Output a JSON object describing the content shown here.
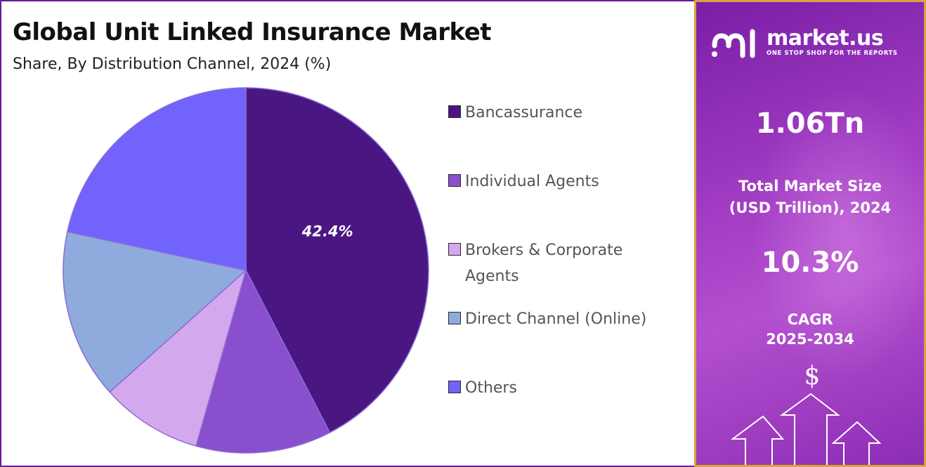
{
  "header": {
    "title": "Global Unit Linked Insurance Market",
    "subtitle": "Share, By Distribution Channel, 2024 (%)"
  },
  "chart_data": {
    "type": "pie",
    "title": "Global Unit Linked Insurance Market",
    "subtitle": "Share, By Distribution Channel, 2024 (%)",
    "slices": [
      {
        "label": "Bancassurance",
        "value": 42.4,
        "color": "#4a1782",
        "show_label": "42.4%"
      },
      {
        "label": "Individual Agents",
        "value": 12.0,
        "color": "#8a4fcc",
        "show_label": ""
      },
      {
        "label": "Brokers & Corporate Agents",
        "value": 9.0,
        "color": "#d4a8ec",
        "show_label": ""
      },
      {
        "label": "Direct Channel (Online)",
        "value": 15.0,
        "color": "#8faadc",
        "show_label": ""
      },
      {
        "label": "Others",
        "value": 21.6,
        "color": "#7163fc",
        "show_label": ""
      }
    ],
    "legend_position": "right"
  },
  "legend": [
    {
      "label": "Bancassurance",
      "color": "#4a1782"
    },
    {
      "label": "Individual Agents",
      "color": "#8a4fcc"
    },
    {
      "label": "Brokers & Corporate Agents",
      "color": "#d4a8ec"
    },
    {
      "label": "Direct Channel (Online)",
      "color": "#8faadc"
    },
    {
      "label": "Others",
      "color": "#7163fc"
    }
  ],
  "sidebar": {
    "brand": "market.us",
    "tagline": "ONE STOP SHOP FOR THE REPORTS",
    "market_size": "1.06Tn",
    "market_size_label_line1": "Total Market Size",
    "market_size_label_line2": "(USD Trillion), 2024",
    "cagr": "10.3%",
    "cagr_label_line1": "CAGR",
    "cagr_label_line2": "2025-2034",
    "dollar_symbol": "$"
  }
}
